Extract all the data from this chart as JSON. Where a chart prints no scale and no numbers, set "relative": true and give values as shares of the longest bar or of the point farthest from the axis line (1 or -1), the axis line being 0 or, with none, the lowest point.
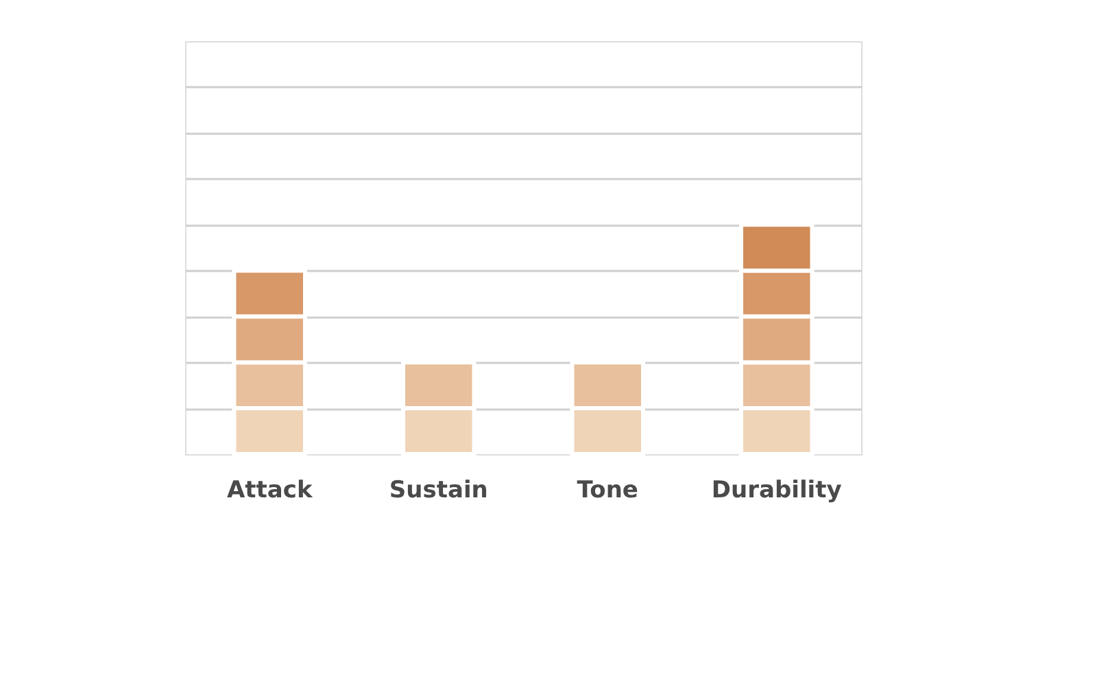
{
  "chart_data": {
    "type": "bar",
    "stacked": true,
    "relative": true,
    "grid": "y",
    "legend": false,
    "categories": [
      "Attack",
      "Sustain",
      "Tone",
      "Durability"
    ],
    "series": [
      {
        "color": "#f0d4b8",
        "values": [
          0.2,
          0.2,
          0.2,
          0.2
        ]
      },
      {
        "color": "#e8c09d",
        "values": [
          0.2,
          0.2,
          0.2,
          0.2
        ]
      },
      {
        "color": "#dfaa80",
        "values": [
          0.2,
          null,
          null,
          0.2
        ]
      },
      {
        "color": "#d89868",
        "values": [
          0.2,
          null,
          null,
          0.2
        ]
      },
      {
        "color": "#d08b56",
        "values": [
          null,
          null,
          null,
          0.2
        ]
      }
    ]
  }
}
